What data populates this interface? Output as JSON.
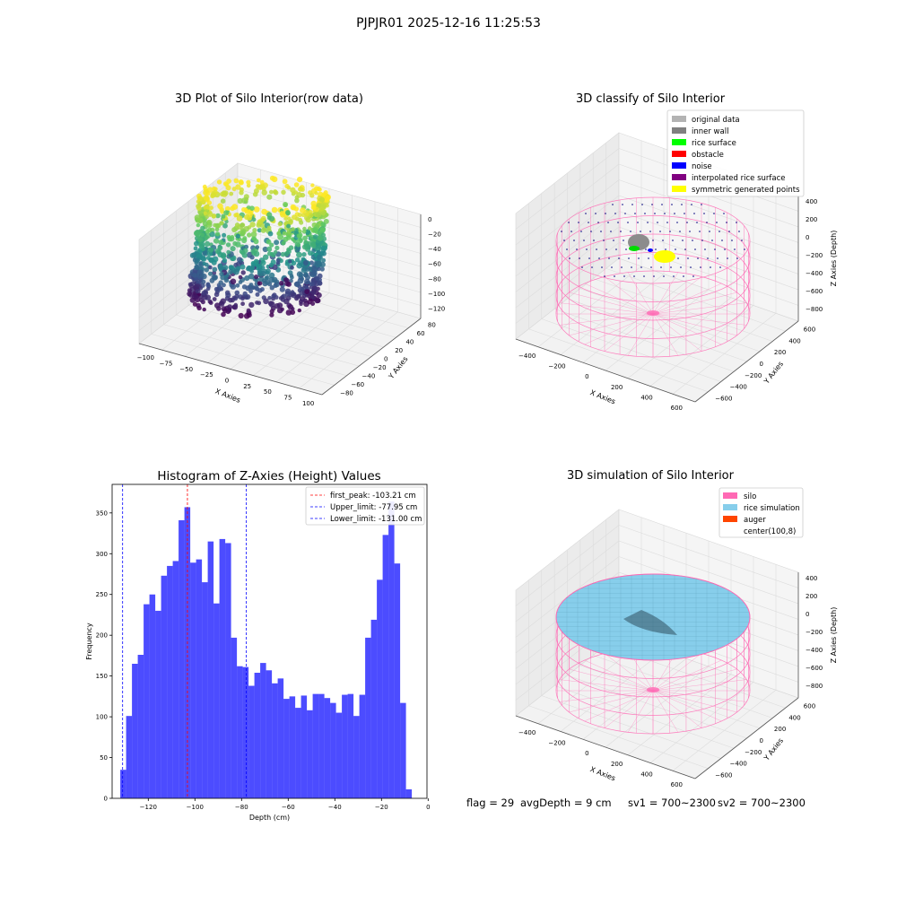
{
  "suptitle": "PJPJR01 2025-12-16 11:25:53",
  "panel_raw": {
    "title": "3D Plot of Silo Interior(row data)",
    "xlabel": "X Axies",
    "ylabel": "Y Axies",
    "zlabel": "Z Axies (Depth)",
    "xticks": [
      "−100",
      "−75",
      "−50",
      "−25",
      "0",
      "25",
      "50",
      "75",
      "100"
    ],
    "yticks": [
      "80",
      "60",
      "40",
      "20",
      "0",
      "−20",
      "−40",
      "−60",
      "−80"
    ],
    "zticks": [
      "0",
      "−20",
      "−40",
      "−60",
      "−80",
      "−100",
      "−120"
    ]
  },
  "panel_classify": {
    "title": "3D classify of Silo Interior",
    "xlabel": "X Axies",
    "ylabel": "Y Axies",
    "zlabel": "Z Axies (Depth)",
    "xticks": [
      "−400",
      "−200",
      "0",
      "200",
      "400",
      "600"
    ],
    "yticks": [
      "600",
      "400",
      "200",
      "0",
      "−200",
      "−400",
      "−600"
    ],
    "zticks": [
      "400",
      "200",
      "0",
      "−200",
      "−400",
      "−600",
      "−800"
    ],
    "legend": [
      {
        "label": "original data",
        "color": "#b3b3b3"
      },
      {
        "label": "inner wall",
        "color": "#808080"
      },
      {
        "label": "rice surface",
        "color": "#00ff00"
      },
      {
        "label": "obstacle",
        "color": "#ff0000"
      },
      {
        "label": "noise",
        "color": "#0000ff"
      },
      {
        "label": "interpolated rice surface",
        "color": "#800080"
      },
      {
        "label": "symmetric generated points",
        "color": "#ffff00"
      }
    ]
  },
  "panel_sim": {
    "title": "3D simulation of Silo Interior",
    "xlabel": "X Axies",
    "ylabel": "Y Axies",
    "zlabel": "Z Axies (Depth)",
    "xticks": [
      "−400",
      "−200",
      "0",
      "200",
      "400",
      "600"
    ],
    "yticks": [
      "600",
      "400",
      "200",
      "0",
      "−200",
      "−400",
      "−600"
    ],
    "zticks": [
      "400",
      "200",
      "0",
      "−200",
      "−400",
      "−600",
      "−800"
    ],
    "legend": [
      {
        "label": "silo",
        "color": "#ff69b4"
      },
      {
        "label": "rice simulation",
        "color": "#87ceeb"
      },
      {
        "label": "auger",
        "color": "#ff4500"
      },
      {
        "label": "center(100,8)",
        "color": "none"
      }
    ]
  },
  "footer": {
    "flag": "flag = 29",
    "avg_depth": "avgDepth = 9 cm",
    "sv1": "sv1 = 700~2300",
    "sv2": "sv2 = 700~2300"
  },
  "chart_data": [
    {
      "type": "histogram",
      "title": "Histogram of Z-Axies (Height) Values",
      "xlabel": "Depth (cm)",
      "ylabel": "Frequency",
      "bar_color": "#0000ff",
      "xlim": [
        -135.5,
        -0.5
      ],
      "ylim": [
        0,
        385
      ],
      "xticks": [
        -120,
        -100,
        -80,
        -60,
        -40,
        -20,
        0
      ],
      "yticks": [
        0,
        50,
        100,
        150,
        200,
        250,
        300,
        350
      ],
      "bins_start": -132,
      "bin_width": 2.5,
      "values": [
        35,
        101,
        165,
        176,
        238,
        250,
        230,
        273,
        285,
        291,
        341,
        357,
        289,
        293,
        265,
        315,
        239,
        318,
        313,
        197,
        162,
        161,
        138,
        154,
        166,
        157,
        141,
        147,
        122,
        125,
        111,
        126,
        108,
        128,
        128,
        123,
        117,
        105,
        127,
        128,
        101,
        127,
        197,
        219,
        268,
        323,
        364,
        288,
        117,
        11
      ],
      "lines": [
        {
          "label": "first_peak: -103.21 cm",
          "x": -103.21,
          "color": "#ff0000"
        },
        {
          "label": "Upper_limit: -77.95 cm",
          "x": -77.95,
          "color": "#0000ff"
        },
        {
          "label": "Lower_limit: -131.00 cm",
          "x": -131.0,
          "color": "#0000ff"
        }
      ]
    }
  ]
}
